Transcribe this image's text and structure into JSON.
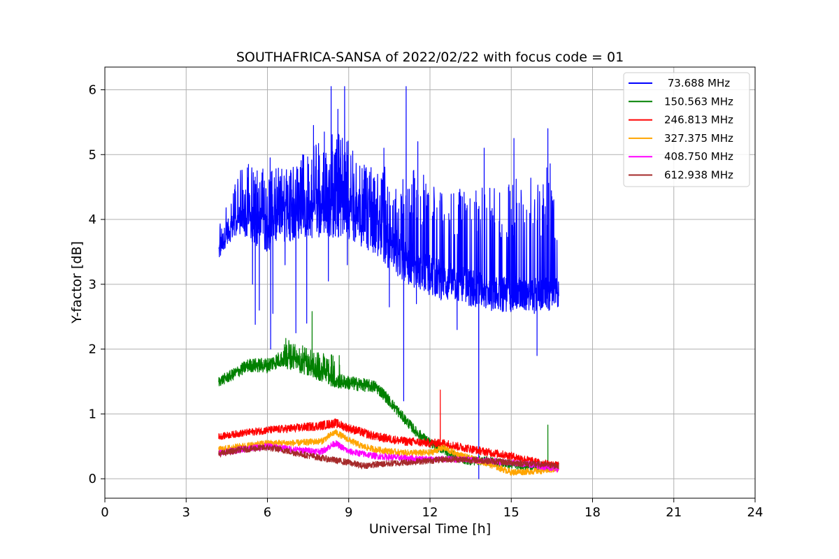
{
  "chart_data": {
    "type": "line",
    "title": "SOUTHAFRICA-SANSA of 2022/02/22 with focus code = 01",
    "xlabel": "Universal Time [h]",
    "ylabel": "Y-factor [dB]",
    "xlim": [
      0,
      24
    ],
    "ylim": [
      -0.3,
      6.35
    ],
    "xticks": [
      0,
      3,
      6,
      9,
      12,
      15,
      18,
      21,
      24
    ],
    "yticks": [
      0,
      1,
      2,
      3,
      4,
      5,
      6
    ],
    "grid": true,
    "legend_position": "top-right",
    "series": [
      {
        "name": "73.688 MHz",
        "legend_label": " 73.688 MHz",
        "color": "#0000ff",
        "baseline": [
          [
            4.2,
            3.5
          ],
          [
            4.5,
            3.8
          ],
          [
            5,
            4.0
          ],
          [
            5.5,
            3.9
          ],
          [
            6,
            3.85
          ],
          [
            6.5,
            4.0
          ],
          [
            7,
            4.05
          ],
          [
            7.5,
            4.1
          ],
          [
            8,
            4.15
          ],
          [
            8.5,
            4.15
          ],
          [
            9,
            4.15
          ],
          [
            9.5,
            4.0
          ],
          [
            10,
            3.85
          ],
          [
            10.5,
            3.6
          ],
          [
            11,
            3.4
          ],
          [
            11.5,
            3.25
          ],
          [
            12,
            3.15
          ],
          [
            12.5,
            3.05
          ],
          [
            13,
            3.0
          ],
          [
            13.5,
            2.95
          ],
          [
            14,
            2.9
          ],
          [
            14.5,
            2.85
          ],
          [
            15,
            2.85
          ],
          [
            15.5,
            2.85
          ],
          [
            16,
            2.85
          ],
          [
            16.5,
            2.85
          ],
          [
            16.75,
            2.85
          ]
        ],
        "spread": [
          [
            4.2,
            0.15
          ],
          [
            6,
            0.35
          ],
          [
            9,
            0.45
          ],
          [
            11,
            0.35
          ],
          [
            13,
            0.3
          ],
          [
            16.75,
            0.25
          ]
        ],
        "envelope_max": [
          [
            4.2,
            3.9
          ],
          [
            4.5,
            4.35
          ],
          [
            5,
            4.8
          ],
          [
            5.5,
            4.8
          ],
          [
            6,
            4.8
          ],
          [
            6.5,
            4.8
          ],
          [
            7,
            4.95
          ],
          [
            7.5,
            5.1
          ],
          [
            8,
            5.25
          ],
          [
            8.5,
            5.4
          ],
          [
            9,
            5.2
          ],
          [
            9.5,
            4.9
          ],
          [
            10,
            4.75
          ],
          [
            10.5,
            4.85
          ],
          [
            11,
            4.8
          ],
          [
            11.5,
            4.9
          ],
          [
            12,
            4.55
          ],
          [
            12.5,
            4.4
          ],
          [
            13,
            4.55
          ],
          [
            13.5,
            4.45
          ],
          [
            14,
            4.5
          ],
          [
            14.5,
            4.5
          ],
          [
            15,
            4.6
          ],
          [
            15.5,
            4.8
          ],
          [
            16,
            4.7
          ],
          [
            16.5,
            4.9
          ],
          [
            16.75,
            4.3
          ]
        ],
        "spikes": [
          [
            5.3,
            4.85
          ],
          [
            6.1,
            4.95
          ],
          [
            7.3,
            5.0
          ],
          [
            7.7,
            5.45
          ],
          [
            8.1,
            5.35
          ],
          [
            8.35,
            6.05
          ],
          [
            8.6,
            5.7
          ],
          [
            8.85,
            6.05
          ],
          [
            10.3,
            5.1
          ],
          [
            11.12,
            6.05
          ],
          [
            11.55,
            5.2
          ],
          [
            14.0,
            5.1
          ],
          [
            15.1,
            5.25
          ],
          [
            16.35,
            5.4
          ]
        ],
        "dips": [
          [
            5.45,
            3.0
          ],
          [
            5.55,
            2.38
          ],
          [
            5.7,
            2.6
          ],
          [
            6.12,
            2.0
          ],
          [
            6.2,
            2.55
          ],
          [
            6.65,
            3.3
          ],
          [
            7.05,
            2.25
          ],
          [
            7.45,
            2.4
          ],
          [
            8.25,
            3.05
          ],
          [
            8.95,
            3.3
          ],
          [
            10.5,
            2.65
          ],
          [
            11.03,
            1.2
          ],
          [
            11.5,
            2.7
          ],
          [
            13.0,
            2.3
          ],
          [
            13.8,
            0.0
          ],
          [
            15.85,
            2.55
          ],
          [
            15.95,
            1.9
          ]
        ]
      },
      {
        "name": "150.563 MHz",
        "legend_label": "150.563 MHz",
        "color": "#008000",
        "baseline": [
          [
            4.2,
            1.5
          ],
          [
            4.7,
            1.6
          ],
          [
            5.3,
            1.75
          ],
          [
            6,
            1.75
          ],
          [
            6.5,
            1.85
          ],
          [
            7,
            1.8
          ],
          [
            7.5,
            1.72
          ],
          [
            8,
            1.62
          ],
          [
            8.5,
            1.52
          ],
          [
            9,
            1.48
          ],
          [
            9.5,
            1.45
          ],
          [
            10,
            1.42
          ],
          [
            10.3,
            1.3
          ],
          [
            10.7,
            1.1
          ],
          [
            11,
            0.95
          ],
          [
            11.5,
            0.72
          ],
          [
            12,
            0.55
          ],
          [
            12.5,
            0.45
          ],
          [
            13,
            0.32
          ],
          [
            13.5,
            0.28
          ],
          [
            14,
            0.28
          ],
          [
            14.5,
            0.25
          ],
          [
            15,
            0.22
          ],
          [
            15.5,
            0.2
          ],
          [
            16,
            0.18
          ],
          [
            16.5,
            0.18
          ],
          [
            16.75,
            0.2
          ]
        ],
        "spread": [
          [
            4.2,
            0.08
          ],
          [
            7,
            0.14
          ],
          [
            11,
            0.08
          ],
          [
            16.75,
            0.06
          ]
        ],
        "envelope_max": [
          [
            6.6,
            2.25
          ],
          [
            7.5,
            2.0
          ],
          [
            8.7,
            1.9
          ]
        ],
        "spikes": [
          [
            7.65,
            2.58
          ],
          [
            8.65,
            1.9
          ],
          [
            16.35,
            0.83
          ]
        ],
        "dips": []
      },
      {
        "name": "246.813 MHz",
        "legend_label": "246.813 MHz",
        "color": "#ff0000",
        "baseline": [
          [
            4.2,
            0.65
          ],
          [
            5,
            0.7
          ],
          [
            6,
            0.75
          ],
          [
            7,
            0.78
          ],
          [
            8,
            0.82
          ],
          [
            8.5,
            0.86
          ],
          [
            9,
            0.78
          ],
          [
            10,
            0.65
          ],
          [
            11,
            0.58
          ],
          [
            12,
            0.55
          ],
          [
            12.5,
            0.55
          ],
          [
            13,
            0.5
          ],
          [
            14,
            0.42
          ],
          [
            15,
            0.35
          ],
          [
            16,
            0.25
          ],
          [
            16.75,
            0.2
          ]
        ],
        "spread": [
          [
            4.2,
            0.05
          ],
          [
            8,
            0.07
          ],
          [
            16.75,
            0.06
          ]
        ],
        "envelope_max": [],
        "spikes": [
          [
            12.38,
            1.37
          ]
        ],
        "dips": []
      },
      {
        "name": "327.375 MHz",
        "legend_label": "327.375 MHz",
        "color": "#ffa500",
        "baseline": [
          [
            4.2,
            0.45
          ],
          [
            5,
            0.5
          ],
          [
            6,
            0.55
          ],
          [
            7,
            0.55
          ],
          [
            8,
            0.58
          ],
          [
            8.5,
            0.72
          ],
          [
            9,
            0.6
          ],
          [
            9.5,
            0.5
          ],
          [
            10,
            0.45
          ],
          [
            11,
            0.4
          ],
          [
            12,
            0.4
          ],
          [
            12.5,
            0.48
          ],
          [
            13,
            0.38
          ],
          [
            14,
            0.25
          ],
          [
            15,
            0.1
          ],
          [
            16,
            0.12
          ],
          [
            16.75,
            0.15
          ]
        ],
        "spread": [
          [
            4.2,
            0.05
          ],
          [
            16.75,
            0.05
          ]
        ],
        "envelope_max": [],
        "spikes": [],
        "dips": []
      },
      {
        "name": "408.750 MHz",
        "legend_label": "408.750 MHz",
        "color": "#ff00ff",
        "baseline": [
          [
            4.2,
            0.4
          ],
          [
            5,
            0.45
          ],
          [
            6,
            0.5
          ],
          [
            7,
            0.45
          ],
          [
            8,
            0.42
          ],
          [
            8.5,
            0.55
          ],
          [
            9,
            0.42
          ],
          [
            10,
            0.35
          ],
          [
            11,
            0.32
          ],
          [
            12,
            0.3
          ],
          [
            13,
            0.3
          ],
          [
            14,
            0.28
          ],
          [
            15,
            0.25
          ],
          [
            16,
            0.2
          ],
          [
            16.75,
            0.15
          ]
        ],
        "spread": [
          [
            4.2,
            0.05
          ],
          [
            16.75,
            0.05
          ]
        ],
        "envelope_max": [],
        "spikes": [],
        "dips": []
      },
      {
        "name": "612.938 MHz",
        "legend_label": "612.938 MHz",
        "color": "#a52a2a",
        "baseline": [
          [
            4.2,
            0.38
          ],
          [
            5,
            0.45
          ],
          [
            6,
            0.48
          ],
          [
            6.5,
            0.45
          ],
          [
            7,
            0.4
          ],
          [
            8,
            0.32
          ],
          [
            9,
            0.25
          ],
          [
            9.5,
            0.2
          ],
          [
            10,
            0.22
          ],
          [
            11,
            0.25
          ],
          [
            12,
            0.28
          ],
          [
            12.5,
            0.3
          ],
          [
            13,
            0.3
          ],
          [
            14,
            0.28
          ],
          [
            15,
            0.25
          ],
          [
            16,
            0.22
          ],
          [
            16.75,
            0.2
          ]
        ],
        "spread": [
          [
            4.2,
            0.05
          ],
          [
            16.75,
            0.05
          ]
        ],
        "envelope_max": [],
        "spikes": [],
        "dips": []
      }
    ]
  }
}
